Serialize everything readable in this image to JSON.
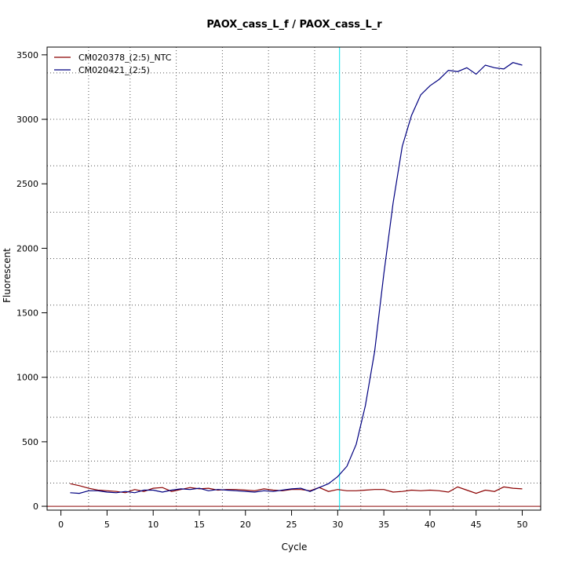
{
  "chart_data": {
    "type": "line",
    "title": "PAOX_cass_L_f / PAOX_cass_L_r",
    "xlabel": "Cycle",
    "ylabel": "Fluorescent",
    "xlim": [
      -1.5,
      52
    ],
    "ylim": [
      -30,
      3560
    ],
    "xticks": [
      0,
      5,
      10,
      15,
      20,
      25,
      30,
      35,
      40,
      45,
      50
    ],
    "yticks": [
      0,
      500,
      1000,
      1500,
      2000,
      2500,
      3000,
      3500
    ],
    "xgrid": [
      3,
      7.5,
      12.5,
      17.5,
      22.5,
      27.5,
      32.5,
      37.5,
      42.5,
      47.5
    ],
    "ygrid": [
      180,
      350,
      690,
      1000,
      1200,
      1560,
      1920,
      2280,
      2640,
      3000,
      3360
    ],
    "legend_position": "top-left",
    "threshold_cycle": 30.2,
    "threshold_color": "#00e5ee",
    "baseline_color": "#8b0000",
    "x": [
      1,
      2,
      3,
      4,
      5,
      6,
      7,
      8,
      9,
      10,
      11,
      12,
      13,
      14,
      15,
      16,
      17,
      18,
      19,
      20,
      21,
      22,
      23,
      24,
      25,
      26,
      27,
      28,
      29,
      30,
      31,
      32,
      33,
      34,
      35,
      36,
      37,
      38,
      39,
      40,
      41,
      42,
      43,
      44,
      45,
      46,
      47,
      48,
      49,
      50
    ],
    "series": [
      {
        "name": "CM020378_(2:5)_NTC",
        "color": "#8b0000",
        "values": [
          175,
          160,
          140,
          125,
          120,
          115,
          105,
          130,
          115,
          140,
          145,
          115,
          130,
          145,
          135,
          140,
          125,
          130,
          130,
          125,
          120,
          135,
          125,
          120,
          130,
          130,
          120,
          145,
          115,
          130,
          120,
          120,
          125,
          130,
          130,
          110,
          115,
          125,
          120,
          125,
          120,
          110,
          150,
          125,
          100,
          125,
          115,
          150,
          140,
          135
        ]
      },
      {
        "name": "CM020421_(2:5)",
        "color": "#000080",
        "values": [
          105,
          100,
          120,
          120,
          110,
          105,
          115,
          105,
          125,
          125,
          110,
          125,
          135,
          130,
          140,
          120,
          130,
          125,
          120,
          115,
          110,
          120,
          115,
          125,
          135,
          140,
          115,
          145,
          175,
          230,
          310,
          480,
          780,
          1200,
          1800,
          2350,
          2790,
          3030,
          3190,
          3260,
          3310,
          3380,
          3370,
          3400,
          3350,
          3420,
          3400,
          3390,
          3440,
          3420
        ]
      }
    ]
  }
}
